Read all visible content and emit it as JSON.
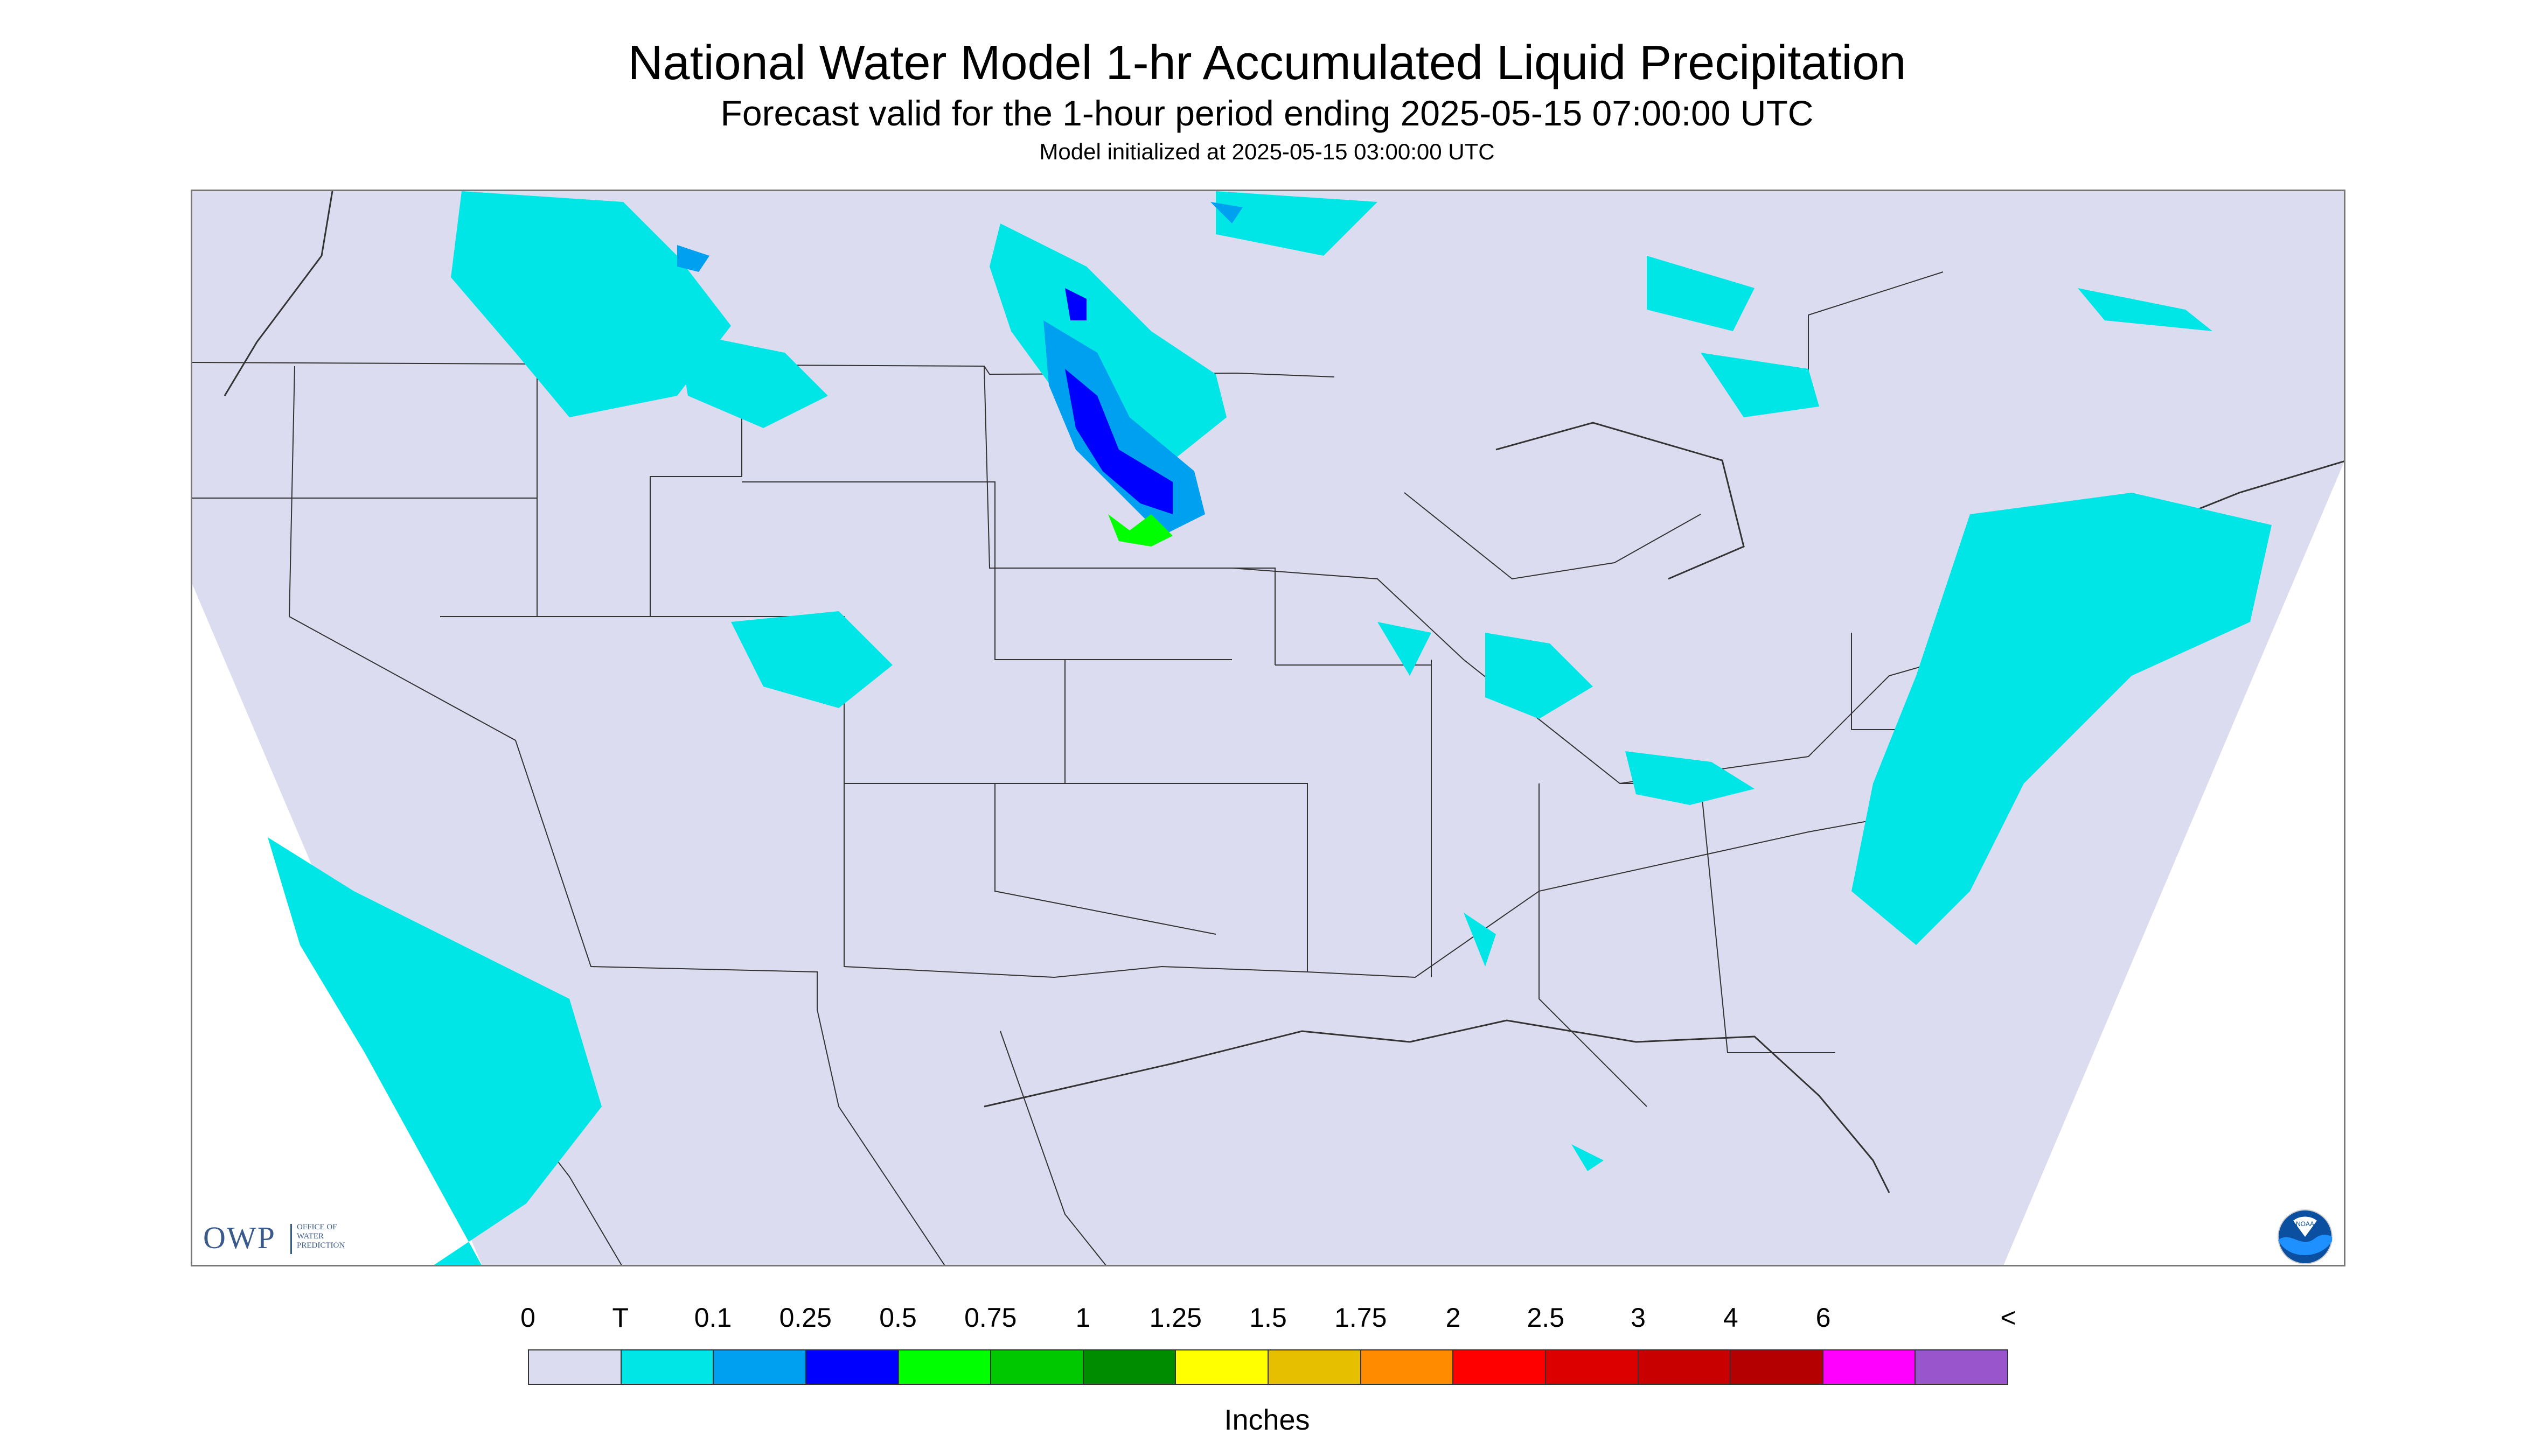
{
  "header": {
    "title": "National Water Model 1-hr Accumulated Liquid Precipitation",
    "subtitle": "Forecast valid for the 1-hour period ending 2025-05-15 07:00:00 UTC",
    "init_text": "Model initialized at 2025-05-15 03:00:00 UTC"
  },
  "logos": {
    "owp": {
      "abbr": "OWP",
      "line1": "OFFICE OF",
      "line2": "WATER",
      "line3": "PREDICTION"
    },
    "noaa": {
      "text": "NOAA"
    }
  },
  "legend": {
    "labels": [
      "0",
      "T",
      "0.1",
      "0.25",
      "0.5",
      "0.75",
      "1",
      "1.25",
      "1.5",
      "1.75",
      "2",
      "2.5",
      "3",
      "4",
      "6",
      "<"
    ],
    "colors": [
      "#dcdcf0",
      "#00e6e6",
      "#00a0f0",
      "#0000ff",
      "#00ff00",
      "#00c800",
      "#008c00",
      "#ffff00",
      "#e6c000",
      "#ff8c00",
      "#ff0000",
      "#dc0000",
      "#c80000",
      "#b40000",
      "#ff00ff",
      "#9955cc"
    ],
    "units": "Inches"
  },
  "colors": {
    "map_background": "#dcdcf0",
    "out_of_domain": "#ffffff",
    "trace": "#00e6e6",
    "light": "#00a0f0",
    "moderate": "#0000ff",
    "heavy": "#00ff00",
    "boundary": "#333333"
  }
}
